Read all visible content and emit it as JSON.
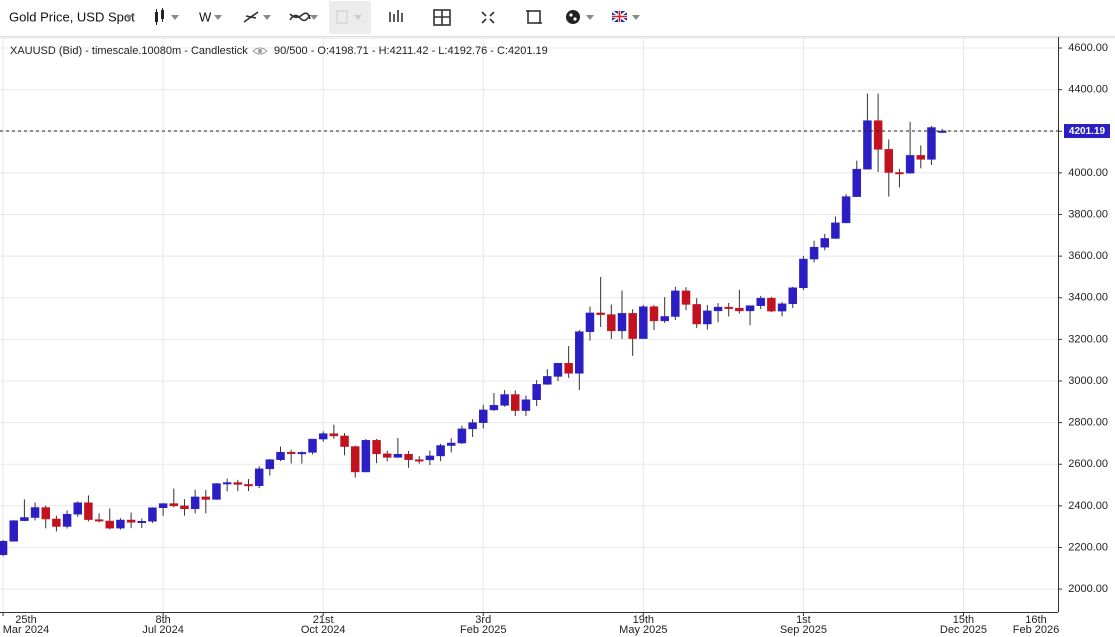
{
  "toolbar": {
    "instrument": "Gold Price, USD Spot",
    "interval": "W"
  },
  "chart_data": {
    "type": "candlestick",
    "title": "XAUUSD (Bid) - timescale.10080m - Candlestick",
    "subtitle": "90/500 - O:4198.71 - H:4211.42 - L:4192.76 - C:4201.19",
    "up_color": "#2b1fc4",
    "down_color": "#c3121f",
    "grid": true,
    "last_price": 4201.19,
    "xlim": [
      "2024-03-23",
      "2026-02-15"
    ],
    "ylim": [
      1890,
      4653
    ],
    "yticks": [
      {
        "value": 2000,
        "label": "2000.00"
      },
      {
        "value": 2200,
        "label": "2200.00"
      },
      {
        "value": 2400,
        "label": "2400.00"
      },
      {
        "value": 2600,
        "label": "2600.00"
      },
      {
        "value": 2800,
        "label": "2800.00"
      },
      {
        "value": 3000,
        "label": "3000.00"
      },
      {
        "value": 3200,
        "label": "3200.00"
      },
      {
        "value": 3400,
        "label": "3400.00"
      },
      {
        "value": 3600,
        "label": "3600.00"
      },
      {
        "value": 3800,
        "label": "3800.00"
      },
      {
        "value": 4000,
        "label": "4000.00"
      },
      {
        "value": 4200,
        "label": "4200.00"
      },
      {
        "value": 4400,
        "label": "4400.00"
      },
      {
        "value": 4600,
        "label": "4600.00"
      }
    ],
    "xticks": [
      {
        "value": "2024-03-25",
        "label": "25th",
        "sublabel": "Mar 2024"
      },
      {
        "value": "2024-07-08",
        "label": "8th",
        "sublabel": "Jul 2024"
      },
      {
        "value": "2024-10-21",
        "label": "21st",
        "sublabel": "Oct 2024"
      },
      {
        "value": "2025-02-03",
        "label": "3rd",
        "sublabel": "Feb 2025"
      },
      {
        "value": "2025-05-19",
        "label": "19th",
        "sublabel": "May 2025"
      },
      {
        "value": "2025-09-01",
        "label": "1st",
        "sublabel": "Sep 2025"
      },
      {
        "value": "2025-12-15",
        "label": "15th",
        "sublabel": "Dec 2025"
      },
      {
        "value": "2026-02-16",
        "label": "16th",
        "sublabel": "Feb 2026"
      }
    ],
    "x": [
      "2024-03-25",
      "2024-04-01",
      "2024-04-08",
      "2024-04-15",
      "2024-04-22",
      "2024-04-29",
      "2024-05-06",
      "2024-05-13",
      "2024-05-20",
      "2024-05-27",
      "2024-06-03",
      "2024-06-10",
      "2024-06-17",
      "2024-06-24",
      "2024-07-01",
      "2024-07-08",
      "2024-07-15",
      "2024-07-22",
      "2024-07-29",
      "2024-08-05",
      "2024-08-12",
      "2024-08-19",
      "2024-08-26",
      "2024-09-02",
      "2024-09-09",
      "2024-09-16",
      "2024-09-23",
      "2024-09-30",
      "2024-10-07",
      "2024-10-14",
      "2024-10-21",
      "2024-10-28",
      "2024-11-04",
      "2024-11-11",
      "2024-11-18",
      "2024-11-25",
      "2024-12-02",
      "2024-12-09",
      "2024-12-16",
      "2024-12-23",
      "2024-12-30",
      "2025-01-06",
      "2025-01-13",
      "2025-01-20",
      "2025-01-27",
      "2025-02-03",
      "2025-02-10",
      "2025-02-17",
      "2025-02-24",
      "2025-03-03",
      "2025-03-10",
      "2025-03-17",
      "2025-03-24",
      "2025-03-31",
      "2025-04-07",
      "2025-04-14",
      "2025-04-21",
      "2025-04-28",
      "2025-05-05",
      "2025-05-12",
      "2025-05-19",
      "2025-05-26",
      "2025-06-02",
      "2025-06-09",
      "2025-06-16",
      "2025-06-23",
      "2025-06-30",
      "2025-07-07",
      "2025-07-14",
      "2025-07-21",
      "2025-07-28",
      "2025-08-04",
      "2025-08-11",
      "2025-08-18",
      "2025-08-25",
      "2025-09-01",
      "2025-09-08",
      "2025-09-15",
      "2025-09-22",
      "2025-09-29",
      "2025-10-06",
      "2025-10-13",
      "2025-10-20",
      "2025-10-27",
      "2025-11-03",
      "2025-11-10",
      "2025-11-17",
      "2025-11-24",
      "2025-12-01"
    ],
    "open": [
      2165,
      2230,
      2329,
      2344,
      2392,
      2337,
      2301,
      2360,
      2415,
      2334,
      2327,
      2293,
      2332,
      2321,
      2326,
      2391,
      2411,
      2400,
      2386,
      2443,
      2431,
      2507,
      2512,
      2503,
      2497,
      2578,
      2622,
      2658,
      2653,
      2657,
      2721,
      2747,
      2736,
      2685,
      2563,
      2715,
      2650,
      2633,
      2648,
      2622,
      2621,
      2640,
      2690,
      2702,
      2770,
      2800,
      2861,
      2883,
      2935,
      2858,
      2910,
      2984,
      3022,
      3085,
      3037,
      3237,
      3327,
      3319,
      3241,
      3325,
      3204,
      3357,
      3289,
      3310,
      3433,
      3368,
      3274,
      3337,
      3355,
      3350,
      3337,
      3362,
      3398,
      3336,
      3371,
      3448,
      3586,
      3643,
      3685,
      3760,
      3886,
      4018,
      4251,
      4113,
      4002,
      3999,
      4084,
      4065,
      4198.71
    ],
    "high": [
      2236,
      2331,
      2431,
      2417,
      2402,
      2353,
      2378,
      2422,
      2450,
      2364,
      2388,
      2341,
      2368,
      2339,
      2393,
      2412,
      2483,
      2432,
      2477,
      2477,
      2509,
      2531,
      2525,
      2529,
      2590,
      2625,
      2685,
      2670,
      2662,
      2721,
      2758,
      2790,
      2750,
      2690,
      2721,
      2721,
      2665,
      2726,
      2664,
      2639,
      2665,
      2698,
      2725,
      2785,
      2817,
      2886,
      2942,
      2956,
      2954,
      2930,
      3004,
      3057,
      3087,
      3168,
      3245,
      3358,
      3500,
      3368,
      3435,
      3345,
      3366,
      3365,
      3403,
      3452,
      3451,
      3398,
      3365,
      3374,
      3375,
      3438,
      3363,
      3409,
      3405,
      3379,
      3453,
      3600,
      3674,
      3707,
      3791,
      3898,
      4059,
      4381,
      4381,
      4161,
      4020,
      4245,
      4132,
      4225,
      4211.42
    ],
    "low": [
      2158,
      2228,
      2326,
      2330,
      2292,
      2277,
      2291,
      2347,
      2325,
      2320,
      2287,
      2286,
      2293,
      2294,
      2318,
      2352,
      2393,
      2353,
      2364,
      2364,
      2430,
      2470,
      2471,
      2471,
      2485,
      2546,
      2615,
      2604,
      2603,
      2647,
      2708,
      2722,
      2643,
      2536,
      2563,
      2605,
      2614,
      2632,
      2583,
      2603,
      2596,
      2615,
      2657,
      2697,
      2731,
      2772,
      2856,
      2877,
      2832,
      2832,
      2880,
      2982,
      3000,
      3015,
      2957,
      3194,
      3260,
      3202,
      3202,
      3121,
      3204,
      3245,
      3279,
      3293,
      3340,
      3255,
      3247,
      3282,
      3310,
      3324,
      3268,
      3345,
      3331,
      3311,
      3351,
      3437,
      3571,
      3628,
      3683,
      3758,
      3885,
      4018,
      4004,
      3886,
      3930,
      3996,
      4022,
      4038,
      4192.76
    ],
    "close": [
      2230,
      2329,
      2344,
      2392,
      2337,
      2301,
      2360,
      2415,
      2334,
      2327,
      2293,
      2332,
      2321,
      2326,
      2391,
      2411,
      2400,
      2386,
      2443,
      2431,
      2507,
      2512,
      2503,
      2497,
      2578,
      2622,
      2658,
      2653,
      2657,
      2721,
      2747,
      2736,
      2685,
      2563,
      2715,
      2650,
      2633,
      2648,
      2622,
      2621,
      2640,
      2690,
      2702,
      2770,
      2800,
      2861,
      2883,
      2935,
      2858,
      2910,
      2984,
      3022,
      3085,
      3037,
      3237,
      3327,
      3319,
      3241,
      3325,
      3204,
      3357,
      3289,
      3310,
      3433,
      3368,
      3274,
      3337,
      3355,
      3350,
      3337,
      3362,
      3398,
      3336,
      3371,
      3448,
      3586,
      3643,
      3685,
      3760,
      3886,
      4018,
      4251,
      4113,
      4002,
      3999,
      4084,
      4065,
      4218,
      4201.19
    ]
  }
}
